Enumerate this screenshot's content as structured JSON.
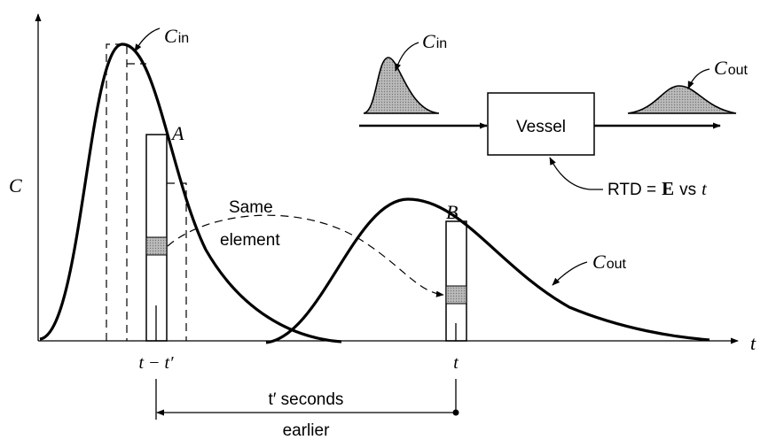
{
  "axes": {
    "y_label": "C",
    "x_label": "t"
  },
  "main_curves": {
    "c_in": {
      "symbol": "C",
      "subscript": "in"
    },
    "c_out": {
      "symbol": "C",
      "subscript": "out"
    }
  },
  "elements": {
    "a": "A",
    "b": "B",
    "same_element": [
      "Same",
      "element"
    ]
  },
  "inset": {
    "c_in": {
      "symbol": "C",
      "subscript": "in"
    },
    "c_out": {
      "symbol": "C",
      "subscript": "out"
    },
    "vessel": "Vessel",
    "rtd": {
      "prefix": "RTD =",
      "bold": "E",
      "middle": "vs",
      "var": "t"
    }
  },
  "time_axis": {
    "t_minus": "t − t′",
    "t": "t",
    "interval": "t′ seconds",
    "interval_note": "earlier"
  }
}
